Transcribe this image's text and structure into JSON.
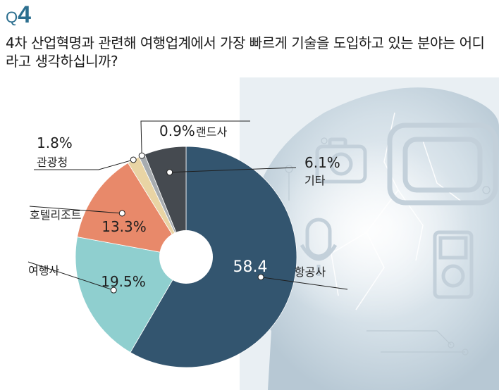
{
  "header": {
    "q_prefix": "Q",
    "q_number": "4",
    "question": "4차 산업혁명과 관련해 여행업계에서 가장 빠르게 기술을 도입하고 있는 분야는 어디라고 생각하십니까?"
  },
  "colors": {
    "accent": "#2c6f8f",
    "background_art": "#dfe8ef"
  },
  "chart_data": {
    "type": "pie",
    "style": "donut",
    "start": "12 o'clock, clockwise",
    "slices": [
      {
        "label": "항공사",
        "value": 58.4,
        "value_text": "58.4",
        "color": "#33556f"
      },
      {
        "label": "여행사",
        "value": 19.5,
        "value_text": "19.5%",
        "color": "#8fcfcf"
      },
      {
        "label": "호텔리조트",
        "value": 13.3,
        "value_text": "13.3%",
        "color": "#e8896a"
      },
      {
        "label": "관광청",
        "value": 1.8,
        "value_text": "1.8%",
        "color": "#e9d4a4"
      },
      {
        "label": "랜드사",
        "value": 0.9,
        "value_text": "0.9%",
        "color": "#a7acb0"
      },
      {
        "label": "기타",
        "value": 6.1,
        "value_text": "6.1%",
        "color": "#454a50"
      }
    ]
  }
}
